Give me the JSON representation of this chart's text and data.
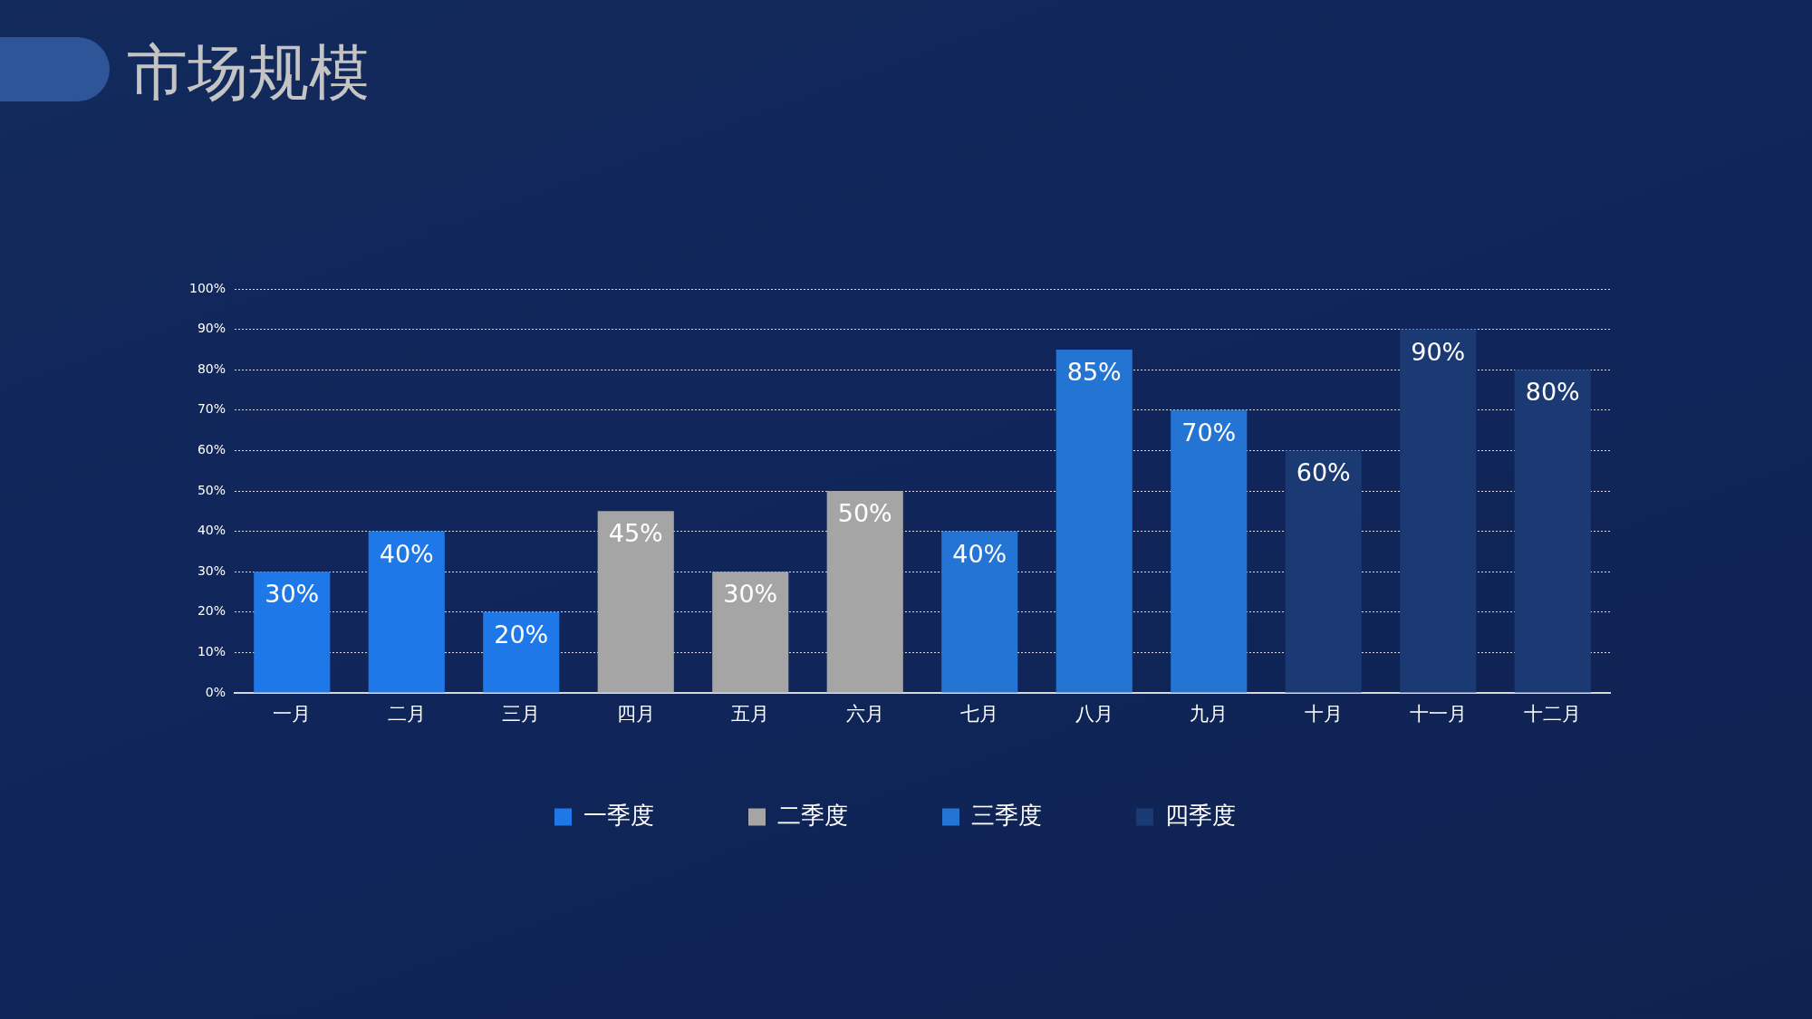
{
  "chart_data": {
    "type": "bar",
    "title": "市场规模",
    "categories": [
      "一月",
      "二月",
      "三月",
      "四月",
      "五月",
      "六月",
      "七月",
      "八月",
      "九月",
      "十月",
      "十一月",
      "十二月"
    ],
    "series": [
      {
        "name": "一季度",
        "color": "#1f78e8",
        "values": [
          30,
          40,
          20,
          null,
          null,
          null,
          null,
          null,
          null,
          null,
          null,
          null
        ],
        "value_labels": [
          "30%",
          "40%",
          "20%",
          null,
          null,
          null,
          null,
          null,
          null,
          null,
          null,
          null
        ]
      },
      {
        "name": "二季度",
        "color": "#a5a5a5",
        "values": [
          null,
          null,
          null,
          45,
          30,
          50,
          null,
          null,
          null,
          null,
          null,
          null
        ],
        "value_labels": [
          null,
          null,
          null,
          "45%",
          "30%",
          "50%",
          null,
          null,
          null,
          null,
          null,
          null
        ]
      },
      {
        "name": "三季度",
        "color": "#2474d4",
        "values": [
          null,
          null,
          null,
          null,
          null,
          null,
          40,
          85,
          70,
          null,
          null,
          null
        ],
        "value_labels": [
          null,
          null,
          null,
          null,
          null,
          null,
          "40%",
          "85%",
          "70%",
          null,
          null,
          null
        ]
      },
      {
        "name": "四季度",
        "color": "#1b3a74",
        "values": [
          null,
          null,
          null,
          null,
          null,
          null,
          null,
          null,
          null,
          60,
          90,
          80
        ],
        "value_labels": [
          null,
          null,
          null,
          null,
          null,
          null,
          null,
          null,
          null,
          "60%",
          "90%",
          "80%"
        ]
      }
    ],
    "ylim": [
      0,
      100
    ],
    "yticks": [
      {
        "value": 0,
        "label": "0%"
      },
      {
        "value": 10,
        "label": "10%"
      },
      {
        "value": 20,
        "label": "20%"
      },
      {
        "value": 30,
        "label": "30%"
      },
      {
        "value": 40,
        "label": "40%"
      },
      {
        "value": 50,
        "label": "50%"
      },
      {
        "value": 60,
        "label": "60%"
      },
      {
        "value": 70,
        "label": "70%"
      },
      {
        "value": 80,
        "label": "80%"
      },
      {
        "value": 90,
        "label": "90%"
      },
      {
        "value": 100,
        "label": "100%"
      }
    ],
    "grid": "y",
    "legend": "bottom"
  }
}
